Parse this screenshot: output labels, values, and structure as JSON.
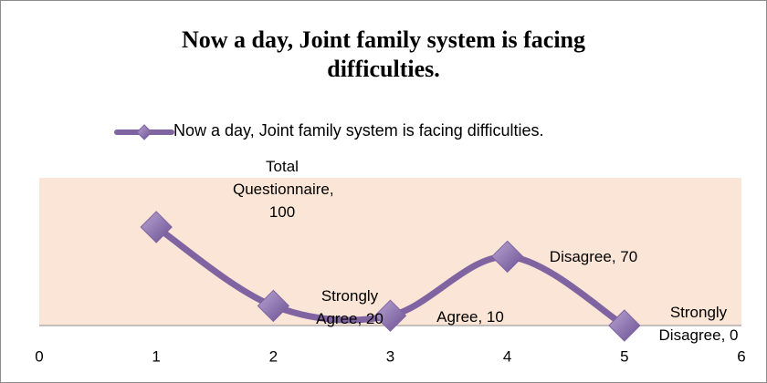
{
  "chart_data": {
    "type": "line",
    "title": "Now a day, Joint family system is facing difficulties.",
    "x": [
      1,
      2,
      3,
      4,
      5
    ],
    "series": [
      {
        "name": "Now a day, Joint family system is facing difficulties.",
        "color": "#8064a2",
        "values": [
          100,
          20,
          10,
          70,
          0
        ],
        "value_labels": [
          "Total Questionnaire, 100",
          "Strongly Agree, 20",
          "Agree, 10",
          "Disagree, 70",
          "Strongly Disagree, 0"
        ]
      }
    ],
    "xlim": [
      0,
      6
    ],
    "xticks": [
      0,
      1,
      2,
      3,
      4,
      5,
      6
    ],
    "ylim": [
      0,
      150
    ],
    "plot_background": "#fbe5d6",
    "smooth": true
  }
}
